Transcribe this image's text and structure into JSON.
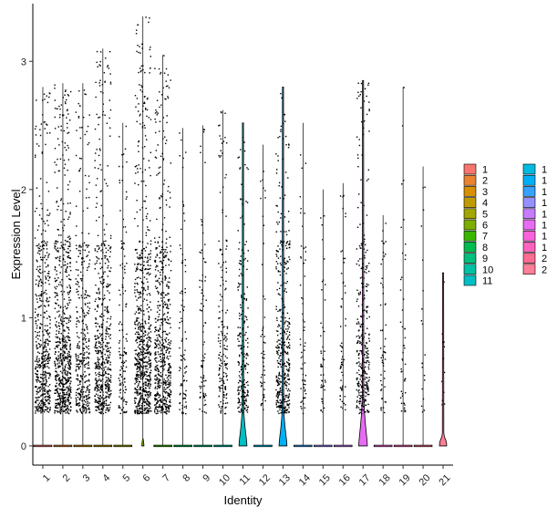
{
  "chart_data": {
    "type": "violin",
    "xlabel": "Identity",
    "ylabel": "Expression Level",
    "ylim": [
      -0.15,
      3.45
    ],
    "y_ticks": [
      0,
      1,
      2,
      3
    ],
    "categories": [
      "1",
      "2",
      "3",
      "4",
      "5",
      "6",
      "7",
      "8",
      "9",
      "10",
      "11",
      "12",
      "13",
      "14",
      "15",
      "16",
      "17",
      "18",
      "19",
      "20",
      "21"
    ],
    "colors": [
      "#F8766D",
      "#EA8331",
      "#D89000",
      "#C09B00",
      "#A3A500",
      "#7CAE00",
      "#39B600",
      "#00BB4E",
      "#00BF7D",
      "#00C1A3",
      "#00BFC4",
      "#00BAE0",
      "#00B0F6",
      "#35A2FF",
      "#9590FF",
      "#C77CFF",
      "#E76BF3",
      "#FA62DB",
      "#FF62BC",
      "#FF6C91",
      "#FF7F97"
    ],
    "series": [
      {
        "name": "1",
        "max": 2.8,
        "points": 520,
        "density": 0.95,
        "violin_width": 0,
        "violin_height": 0.02
      },
      {
        "name": "2",
        "max": 2.83,
        "points": 700,
        "density": 1.0,
        "violin_width": 0,
        "violin_height": 0.02
      },
      {
        "name": "3",
        "max": 2.83,
        "points": 380,
        "density": 0.85,
        "violin_width": 0,
        "violin_height": 0.02
      },
      {
        "name": "4",
        "max": 3.1,
        "points": 560,
        "density": 1.0,
        "violin_width": 0,
        "violin_height": 0.02
      },
      {
        "name": "5",
        "max": 2.52,
        "points": 130,
        "density": 0.5,
        "violin_width": 0,
        "violin_height": 0.02
      },
      {
        "name": "6",
        "max": 3.35,
        "points": 760,
        "density": 1.0,
        "violin_width": 0.1,
        "violin_height": 0.09
      },
      {
        "name": "7",
        "max": 3.05,
        "points": 600,
        "density": 1.0,
        "violin_width": 0,
        "violin_height": 0.02
      },
      {
        "name": "8",
        "max": 2.48,
        "points": 90,
        "density": 0.45,
        "violin_width": 0,
        "violin_height": 0.02
      },
      {
        "name": "9",
        "max": 2.5,
        "points": 80,
        "density": 0.4,
        "violin_width": 0,
        "violin_height": 0.02
      },
      {
        "name": "10",
        "max": 2.62,
        "points": 170,
        "density": 0.55,
        "violin_width": 0,
        "violin_height": 0.02
      },
      {
        "name": "11",
        "max": 2.52,
        "points": 230,
        "density": 0.65,
        "violin_width": 0.44,
        "violin_height": 0.3
      },
      {
        "name": "12",
        "max": 2.35,
        "points": 50,
        "density": 0.3,
        "violin_width": 0,
        "violin_height": 0.02
      },
      {
        "name": "13",
        "max": 2.8,
        "points": 420,
        "density": 0.85,
        "violin_width": 0.44,
        "violin_height": 0.3
      },
      {
        "name": "14",
        "max": 2.52,
        "points": 60,
        "density": 0.35,
        "violin_width": 0,
        "violin_height": 0.02
      },
      {
        "name": "15",
        "max": 2.0,
        "points": 45,
        "density": 0.3,
        "violin_width": 0,
        "violin_height": 0.02
      },
      {
        "name": "16",
        "max": 2.05,
        "points": 60,
        "density": 0.35,
        "violin_width": 0,
        "violin_height": 0.02
      },
      {
        "name": "17",
        "max": 2.85,
        "points": 330,
        "density": 0.8,
        "violin_width": 0.48,
        "violin_height": 0.38
      },
      {
        "name": "18",
        "max": 1.8,
        "points": 55,
        "density": 0.35,
        "violin_width": 0,
        "violin_height": 0.02
      },
      {
        "name": "19",
        "max": 2.8,
        "points": 45,
        "density": 0.3,
        "violin_width": 0,
        "violin_height": 0.02
      },
      {
        "name": "20",
        "max": 2.18,
        "points": 20,
        "density": 0.25,
        "violin_width": 0,
        "violin_height": 0.02
      },
      {
        "name": "21",
        "max": 1.35,
        "points": 12,
        "density": 0.2,
        "violin_width": 0.4,
        "violin_height": 0.1
      }
    ],
    "grid": false,
    "legend": {
      "position": "right",
      "columns": 2
    }
  }
}
